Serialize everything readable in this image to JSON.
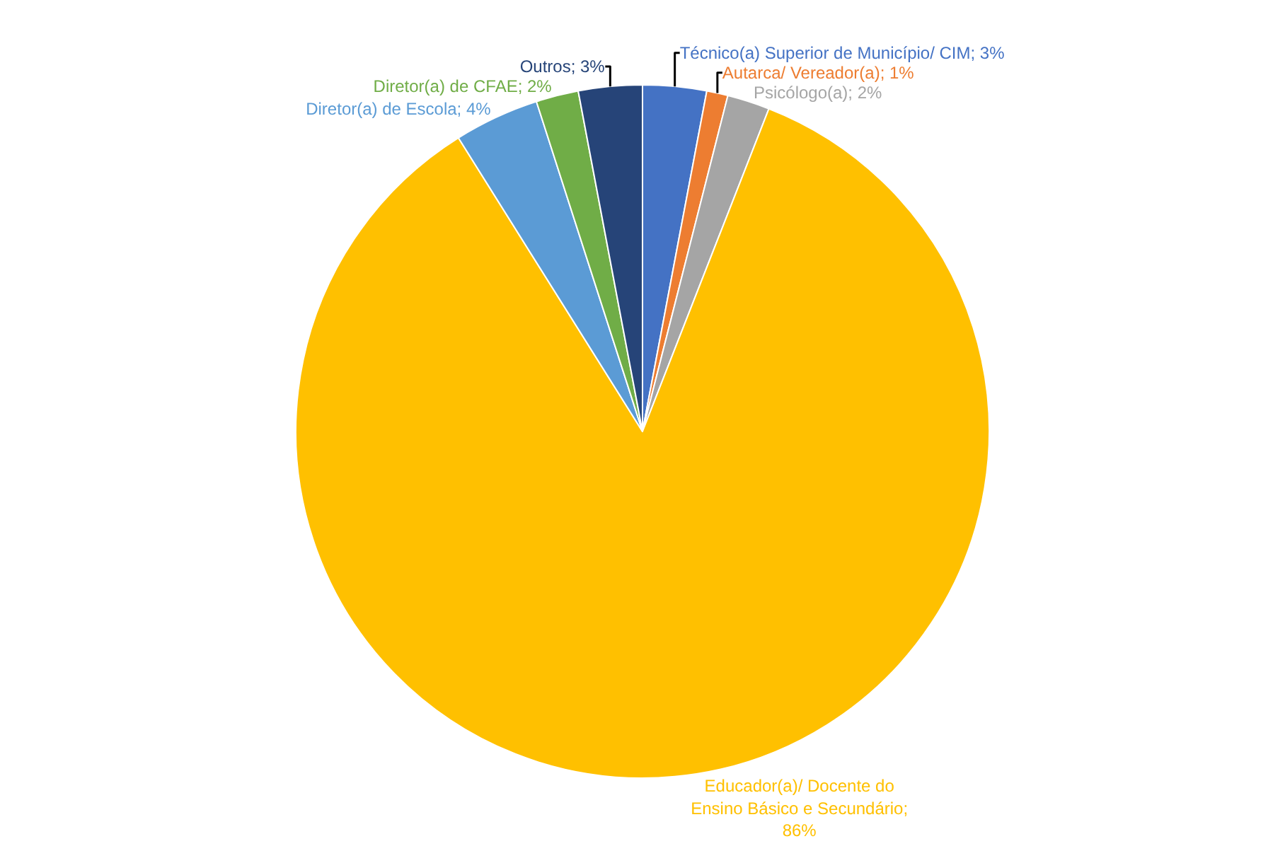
{
  "chart_data": {
    "type": "pie",
    "categories": [
      "Técnico(a) Superior de Município/ CIM; 3%",
      "Autarca/ Vereador(a); 1%",
      "Psicólogo(a); 2%",
      "Educador(a)/ Docente do Ensino Básico e Secundário; 86%",
      "Diretor(a) de Escola; 4%",
      "Diretor(a) de CFAE; 2%",
      "Outros; 3%"
    ],
    "values": [
      3,
      1,
      2,
      86,
      4,
      2,
      3
    ],
    "colors": [
      "#4472c4",
      "#ed7d31",
      "#a5a5a5",
      "#ffc000",
      "#5b9bd5",
      "#70ad47",
      "#264478"
    ],
    "legend": false
  }
}
